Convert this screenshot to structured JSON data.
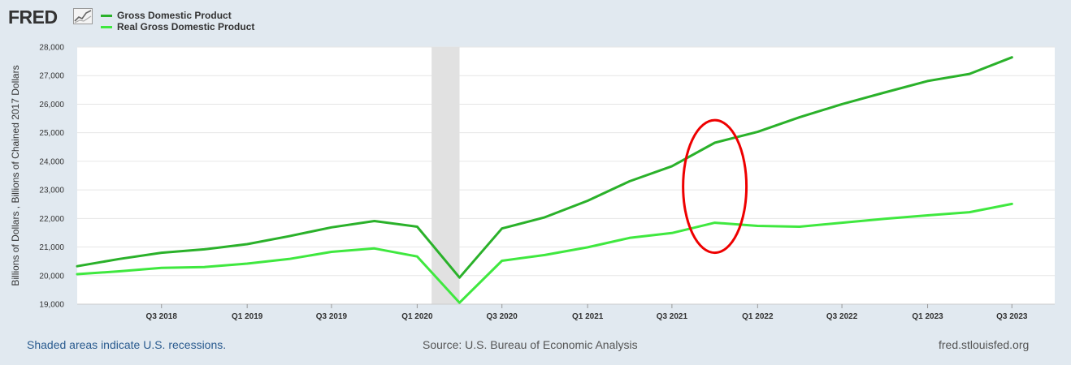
{
  "header": {
    "logo_text": "FRED",
    "logo_icon": "chart-line-icon"
  },
  "colors": {
    "background": "#e1e9f0",
    "plot_background": "#ffffff",
    "series_gdp": "#2ab12a",
    "series_real_gdp": "#3fe83f",
    "recession_shade": "#e1e1e1",
    "annotation_ellipse": "#ee0000"
  },
  "chart_data": {
    "type": "line",
    "title": "",
    "ylabel": "Billions of Dollars , Billions of Chained 2017 Dollars",
    "xlabel": "",
    "ylim": [
      19000,
      28000
    ],
    "xlim": [
      "2018-01-01",
      "2023-10-01"
    ],
    "y_ticks": [
      19000,
      20000,
      21000,
      22000,
      23000,
      24000,
      25000,
      26000,
      27000,
      28000
    ],
    "y_tick_labels": [
      "19,000",
      "20,000",
      "21,000",
      "22,000",
      "23,000",
      "24,000",
      "25,000",
      "26,000",
      "27,000",
      "28,000"
    ],
    "x_ticks": [
      "2018-07-01",
      "2019-01-01",
      "2019-07-01",
      "2020-01-01",
      "2020-07-01",
      "2021-01-01",
      "2021-07-01",
      "2022-01-01",
      "2022-07-01",
      "2023-01-01",
      "2023-07-01"
    ],
    "x_tick_labels": [
      "Q3 2018",
      "Q1 2019",
      "Q3 2019",
      "Q1 2020",
      "Q3 2020",
      "Q1 2021",
      "Q3 2021",
      "Q1 2022",
      "Q3 2022",
      "Q1 2023",
      "Q3 2023"
    ],
    "x": [
      "2018-01-01",
      "2018-04-01",
      "2018-07-01",
      "2018-10-01",
      "2019-01-01",
      "2019-04-01",
      "2019-07-01",
      "2019-10-01",
      "2020-01-01",
      "2020-04-01",
      "2020-07-01",
      "2020-10-01",
      "2021-01-01",
      "2021-04-01",
      "2021-07-01",
      "2021-10-01",
      "2022-01-01",
      "2022-04-01",
      "2022-07-01",
      "2022-10-01",
      "2023-01-01",
      "2023-04-01",
      "2023-07-01"
    ],
    "series": [
      {
        "name": "Gross Domestic Product",
        "color": "#2ab12a",
        "values": [
          20330,
          20580,
          20800,
          20920,
          21100,
          21380,
          21690,
          21910,
          21710,
          19930,
          21650,
          22040,
          22620,
          23300,
          23830,
          24650,
          25030,
          25540,
          26000,
          26410,
          26810,
          27060,
          27640
        ]
      },
      {
        "name": "Real Gross Domestic Product",
        "color": "#3fe83f",
        "values": [
          20050,
          20150,
          20270,
          20300,
          20420,
          20580,
          20830,
          20950,
          20670,
          19050,
          20520,
          20720,
          20990,
          21320,
          21490,
          21850,
          21740,
          21710,
          21850,
          21990,
          22110,
          22220,
          22510
        ]
      }
    ],
    "recession_shading": [
      {
        "start": "2020-02-01",
        "end": "2020-04-01"
      }
    ],
    "annotation": {
      "type": "ellipse",
      "color": "#ee0000",
      "center_x": "2021-10-01",
      "center_y": 23120,
      "radius_x_days": 68,
      "radius_y": 2320
    },
    "grid": "horizontal",
    "legend_position": "top-left"
  },
  "footer": {
    "recession_note": "Shaded areas indicate U.S. recessions.",
    "source": "Source: U.S. Bureau of Economic Analysis",
    "site": "fred.stlouisfed.org"
  }
}
